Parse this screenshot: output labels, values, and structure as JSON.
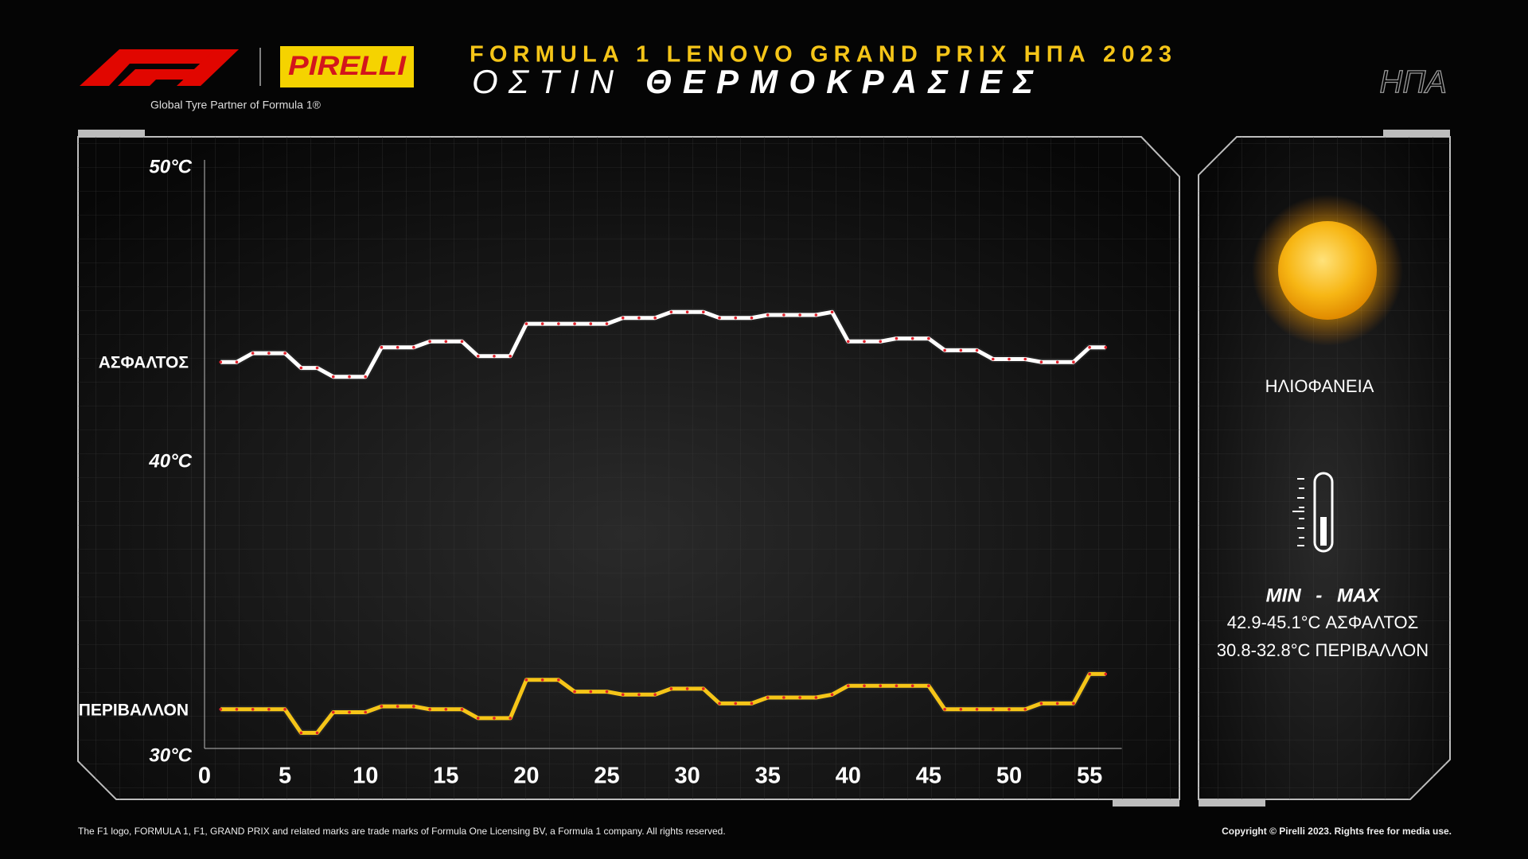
{
  "header": {
    "tagline": "Global Tyre Partner of Formula 1®",
    "brand": "PIRELLI",
    "country": "ΗΠΑ"
  },
  "chart_data": {
    "type": "line",
    "title": "FORMULA 1 LENOVO GRAND PRIX ΗΠΑ 2023",
    "subtitle_place": "ΟΣΤΙΝ",
    "subtitle": "ΘΕΡΜΟΚΡΑΣΙΕΣ",
    "x": [
      1,
      2,
      3,
      4,
      5,
      6,
      7,
      8,
      9,
      10,
      11,
      12,
      13,
      14,
      15,
      16,
      17,
      18,
      19,
      20,
      21,
      22,
      23,
      24,
      25,
      26,
      27,
      28,
      29,
      30,
      31,
      32,
      33,
      34,
      35,
      36,
      37,
      38,
      39,
      40,
      41,
      42,
      43,
      44,
      45,
      46,
      47,
      48,
      49,
      50,
      51,
      52,
      53,
      54,
      55,
      56
    ],
    "xlim": [
      0,
      57
    ],
    "xticks": [
      0,
      5,
      10,
      15,
      20,
      25,
      30,
      35,
      40,
      45,
      50,
      55
    ],
    "ylim": [
      30,
      50
    ],
    "yticks": [
      {
        "value": 30,
        "label": "30°C"
      },
      {
        "value": 40,
        "label": "40°C"
      },
      {
        "value": 50,
        "label": "50°C"
      }
    ],
    "series": [
      {
        "name": "ΑΣΦΑΛΤΟΣ",
        "color": "#ffffff",
        "values": [
          43.4,
          43.4,
          43.7,
          43.7,
          43.7,
          43.2,
          43.2,
          42.9,
          42.9,
          42.9,
          43.9,
          43.9,
          43.9,
          44.1,
          44.1,
          44.1,
          43.6,
          43.6,
          43.6,
          44.7,
          44.7,
          44.7,
          44.7,
          44.7,
          44.7,
          44.9,
          44.9,
          44.9,
          45.1,
          45.1,
          45.1,
          44.9,
          44.9,
          44.9,
          45.0,
          45.0,
          45.0,
          45.0,
          45.1,
          44.1,
          44.1,
          44.1,
          44.2,
          44.2,
          44.2,
          43.8,
          43.8,
          43.8,
          43.5,
          43.5,
          43.5,
          43.4,
          43.4,
          43.4,
          43.9,
          43.9
        ]
      },
      {
        "name": "ΠΕΡΙΒΑΛΛΟΝ",
        "color": "#f5c518",
        "values": [
          31.6,
          31.6,
          31.6,
          31.6,
          31.6,
          30.8,
          30.8,
          31.5,
          31.5,
          31.5,
          31.7,
          31.7,
          31.7,
          31.6,
          31.6,
          31.6,
          31.3,
          31.3,
          31.3,
          32.6,
          32.6,
          32.6,
          32.2,
          32.2,
          32.2,
          32.1,
          32.1,
          32.1,
          32.3,
          32.3,
          32.3,
          31.8,
          31.8,
          31.8,
          32.0,
          32.0,
          32.0,
          32.0,
          32.1,
          32.4,
          32.4,
          32.4,
          32.4,
          32.4,
          32.4,
          31.6,
          31.6,
          31.6,
          31.6,
          31.6,
          31.6,
          31.8,
          31.8,
          31.8,
          32.8,
          32.8
        ]
      }
    ],
    "marker_color": "#e0202a",
    "grid": false
  },
  "weather": {
    "condition": "ΗΛΙΟΦΑΝΕΙΑ",
    "minmax": "MIN - MAX",
    "asphalt_range": "42.9-45.1°C ΑΣΦΑΛΤΟΣ",
    "air_range": "30.8-32.8°C ΠΕΡΙΒΑΛΛΟΝ"
  },
  "footer": {
    "left": "The F1 logo, FORMULA 1, F1, GRAND PRIX and related marks are trade marks of Formula One Licensing BV, a Formula 1 company. All rights reserved.",
    "right": "Copyright © Pirelli 2023. Rights free for media use."
  }
}
